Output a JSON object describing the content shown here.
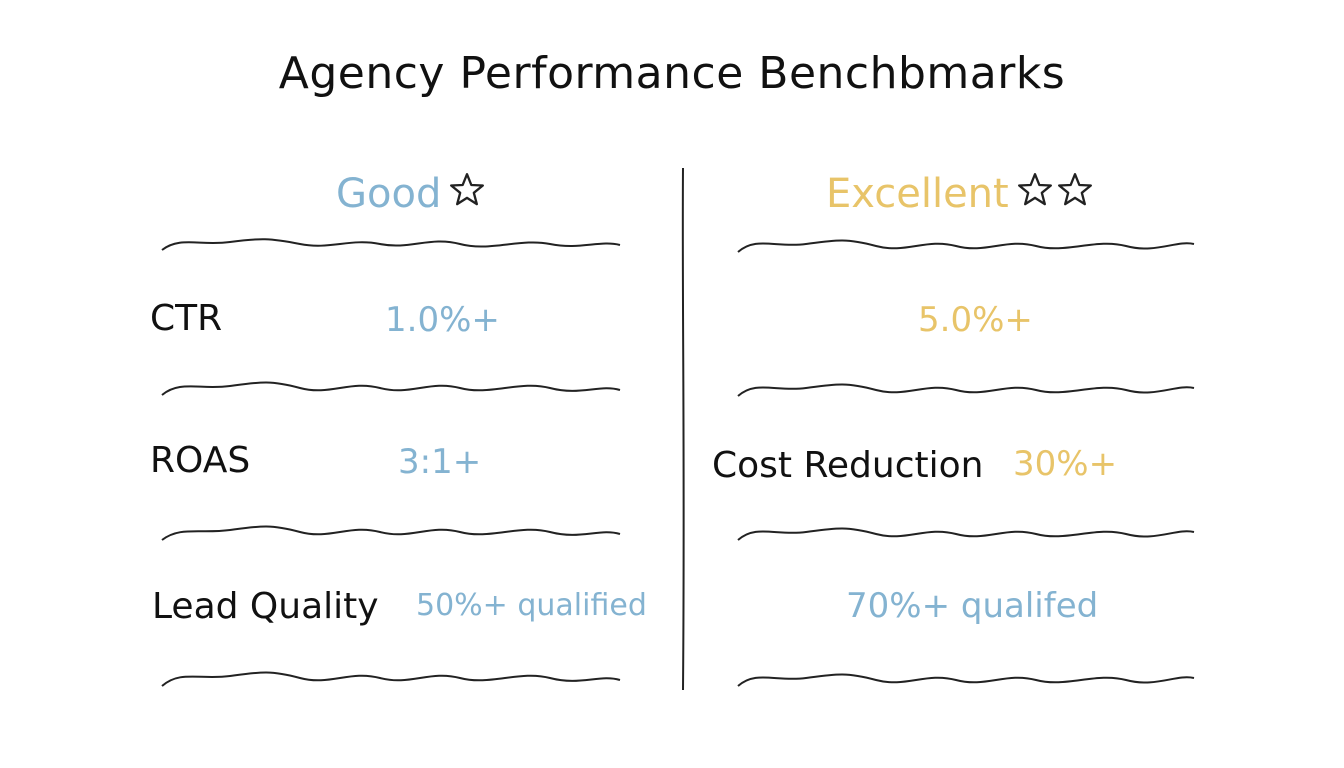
{
  "title": "Agency Performance Benchbmarks",
  "colors": {
    "good": "#84b3d1",
    "excellent": "#e8c469",
    "ink": "#111111"
  },
  "columns": {
    "good": {
      "header": "Good",
      "stars": 1,
      "star_icon": "outline-star-icon"
    },
    "excellent": {
      "header": "Excellent",
      "stars": 2,
      "star_icon": "outline-star-icon"
    }
  },
  "rows": [
    {
      "good_label": "CTR",
      "good_value": "1.0%+",
      "excellent_label": "",
      "excellent_value": "5.0%+"
    },
    {
      "good_label": "ROAS",
      "good_value": "3:1+",
      "excellent_label": "Cost Reduction",
      "excellent_value": "30%+"
    },
    {
      "good_label": "Lead Quality",
      "good_value": "50%+ qualified",
      "excellent_label": "",
      "excellent_value": "70%+ qualifed"
    }
  ]
}
